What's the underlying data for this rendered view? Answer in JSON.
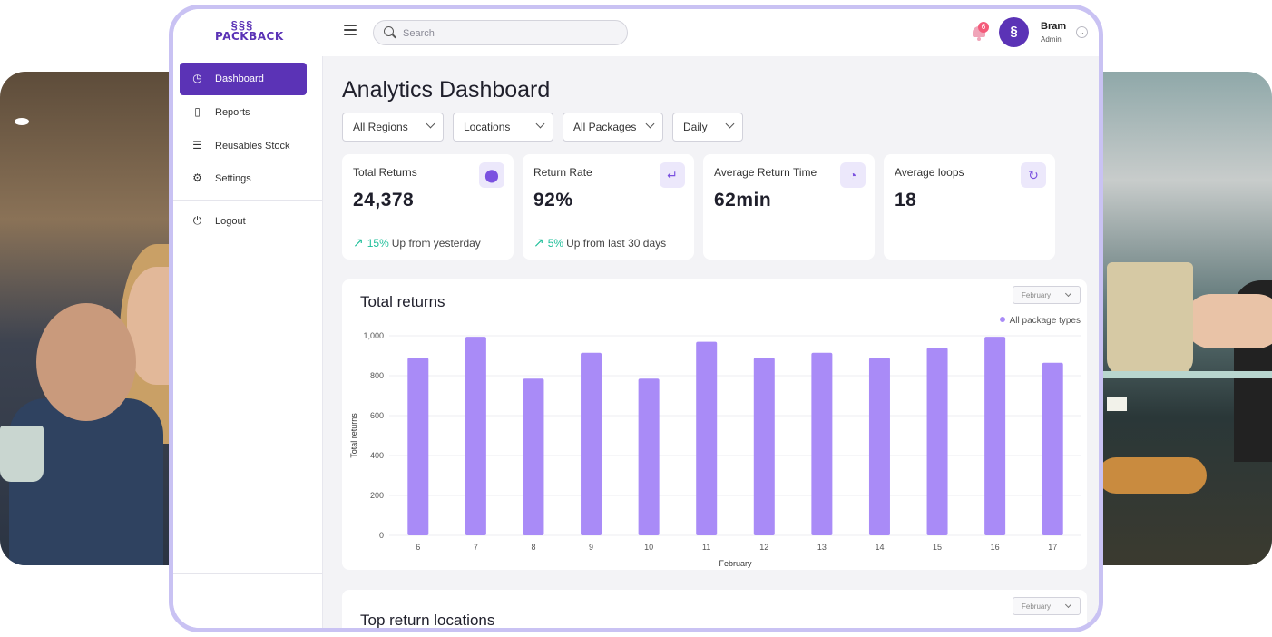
{
  "brand": {
    "name": "PACKBACK",
    "mark": "§§§"
  },
  "topbar": {
    "search_placeholder": "Search",
    "notifications": "6",
    "user": {
      "name": "Bram",
      "role": "Admin",
      "avatar": "§"
    }
  },
  "sidebar": {
    "items": [
      {
        "label": "Dashboard",
        "icon": "speedometer-icon",
        "active": true
      },
      {
        "label": "Reports",
        "icon": "clipboard-icon"
      },
      {
        "label": "Reusables Stock",
        "icon": "list-icon"
      },
      {
        "label": "Settings",
        "icon": "gear-icon"
      }
    ],
    "logout": {
      "label": "Logout",
      "icon": "power-icon"
    }
  },
  "main": {
    "title": "Analytics Dashboard",
    "filters": [
      "All Regions",
      "Locations",
      "All Packages",
      "Daily"
    ],
    "kpis": [
      {
        "title": "Total Returns",
        "value": "24,378",
        "icon": "location-pin-icon",
        "trend_pct": "15%",
        "trend_text": "Up from yesterday"
      },
      {
        "title": "Return Rate",
        "value": "92%",
        "icon": "return-arrow-icon",
        "trend_pct": "5%",
        "trend_text": "Up from last 30 days"
      },
      {
        "title": "Average Return Time",
        "value": "62min",
        "icon": "clock-icon"
      },
      {
        "title": "Average loops",
        "value": "18",
        "icon": "refresh-icon"
      }
    ],
    "returns_card": {
      "title": "Total returns",
      "month": "February"
    },
    "locations_card": {
      "title": "Top return locations",
      "month": "February"
    }
  },
  "colors": {
    "accent": "#5b33b6",
    "bar": "#a98bf7",
    "trend_up": "#1fbf9a",
    "frame": "#c9c2f3"
  },
  "chart_data": {
    "type": "bar",
    "categories": [
      "6",
      "7",
      "8",
      "9",
      "10",
      "11",
      "12",
      "13",
      "14",
      "15",
      "16",
      "17"
    ],
    "series": [
      {
        "name": "All package types",
        "values": [
          890,
          995,
          785,
          915,
          785,
          970,
          890,
          915,
          890,
          940,
          995,
          865
        ]
      }
    ],
    "xlabel": "February",
    "ylabel": "Total returns",
    "ylim": [
      0,
      1000
    ],
    "yticks": [
      "0",
      "200",
      "400",
      "600",
      "800",
      "1,000"
    ],
    "grid": true,
    "legend": "top-right"
  }
}
